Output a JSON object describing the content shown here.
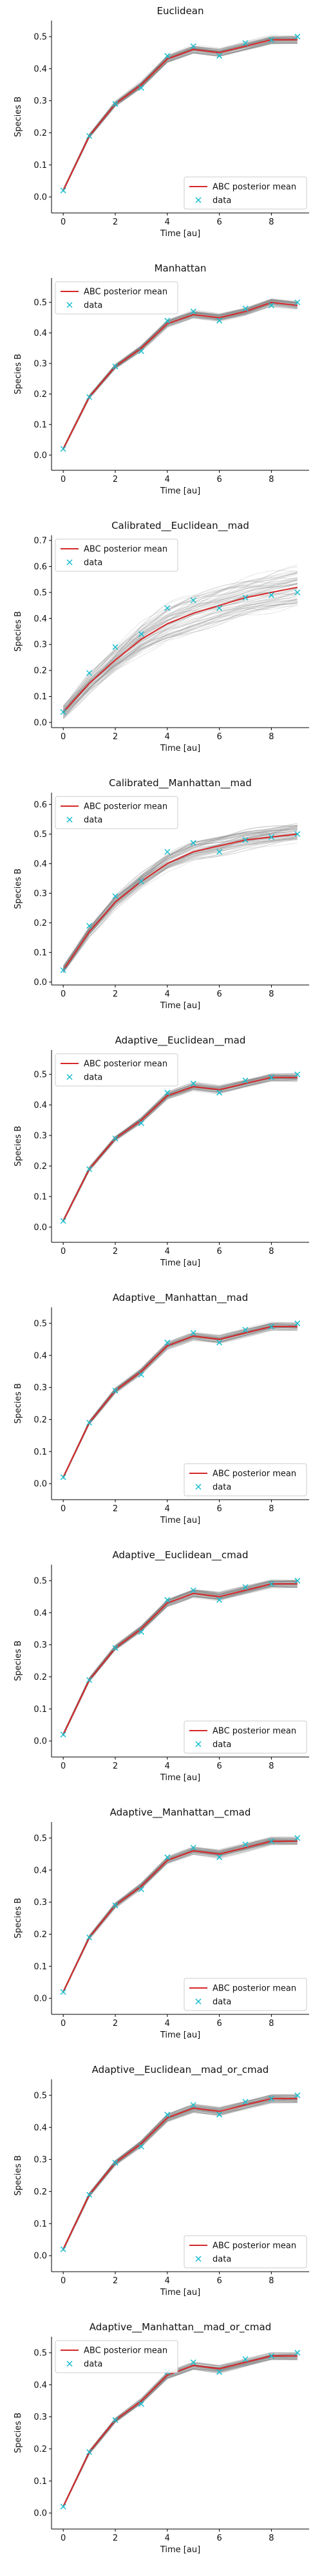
{
  "chart_data": [
    {
      "type": "line",
      "title": "Euclidean",
      "xlabel": "Time [au]",
      "ylabel": "Species B",
      "xlim": [
        -0.45,
        9.45
      ],
      "ylim": [
        -0.05,
        0.55
      ],
      "xticks": [
        0,
        2,
        4,
        6,
        8
      ],
      "yticks": [
        0.0,
        0.1,
        0.2,
        0.3,
        0.4,
        0.5
      ],
      "legend": {
        "placement": "lower-right",
        "entries": [
          "ABC posterior mean",
          "data"
        ]
      },
      "grid": false,
      "band_spread": 0.012,
      "series": [
        {
          "name": "ABC posterior mean",
          "kind": "line",
          "color": "#d62728",
          "x": [
            0,
            1,
            2,
            3,
            4,
            5,
            6,
            7,
            8,
            9
          ],
          "values": [
            0.02,
            0.19,
            0.29,
            0.35,
            0.43,
            0.46,
            0.45,
            0.47,
            0.49,
            0.49
          ]
        },
        {
          "name": "data",
          "kind": "marker",
          "color": "#17becf",
          "x": [
            0,
            1,
            2,
            3,
            4,
            5,
            6,
            7,
            8,
            9
          ],
          "values": [
            0.02,
            0.19,
            0.29,
            0.34,
            0.44,
            0.47,
            0.44,
            0.48,
            0.49,
            0.5
          ]
        }
      ]
    },
    {
      "type": "line",
      "title": "Manhattan",
      "xlabel": "Time [au]",
      "ylabel": "Species B",
      "xlim": [
        -0.45,
        9.45
      ],
      "ylim": [
        -0.05,
        0.58
      ],
      "xticks": [
        0,
        2,
        4,
        6,
        8
      ],
      "yticks": [
        0.0,
        0.1,
        0.2,
        0.3,
        0.4,
        0.5
      ],
      "legend": {
        "placement": "upper-left",
        "entries": [
          "ABC posterior mean",
          "data"
        ]
      },
      "grid": false,
      "band_spread": 0.012,
      "series": [
        {
          "name": "ABC posterior mean",
          "kind": "line",
          "color": "#d62728",
          "x": [
            0,
            1,
            2,
            3,
            4,
            5,
            6,
            7,
            8,
            9
          ],
          "values": [
            0.02,
            0.19,
            0.29,
            0.35,
            0.43,
            0.46,
            0.45,
            0.47,
            0.5,
            0.49
          ]
        },
        {
          "name": "data",
          "kind": "marker",
          "color": "#17becf",
          "x": [
            0,
            1,
            2,
            3,
            4,
            5,
            6,
            7,
            8,
            9
          ],
          "values": [
            0.02,
            0.19,
            0.29,
            0.34,
            0.44,
            0.47,
            0.44,
            0.48,
            0.49,
            0.5
          ]
        }
      ]
    },
    {
      "type": "line",
      "title": "Calibrated__Euclidean__mad",
      "xlabel": "Time [au]",
      "ylabel": "Species B",
      "xlim": [
        -0.45,
        9.45
      ],
      "ylim": [
        -0.02,
        0.72
      ],
      "xticks": [
        0,
        2,
        4,
        6,
        8
      ],
      "yticks": [
        0.0,
        0.1,
        0.2,
        0.3,
        0.4,
        0.5,
        0.6,
        0.7
      ],
      "legend": {
        "placement": "upper-left",
        "entries": [
          "ABC posterior mean",
          "data"
        ]
      },
      "grid": false,
      "band_spread": 0.065,
      "series": [
        {
          "name": "ABC posterior mean",
          "kind": "line",
          "color": "#d62728",
          "x": [
            0,
            1,
            2,
            3,
            4,
            5,
            6,
            7,
            8,
            9
          ],
          "values": [
            0.04,
            0.15,
            0.24,
            0.32,
            0.38,
            0.42,
            0.45,
            0.48,
            0.5,
            0.52
          ]
        },
        {
          "name": "data",
          "kind": "marker",
          "color": "#17becf",
          "x": [
            0,
            1,
            2,
            3,
            4,
            5,
            6,
            7,
            8,
            9
          ],
          "values": [
            0.04,
            0.19,
            0.29,
            0.34,
            0.44,
            0.47,
            0.44,
            0.48,
            0.49,
            0.5
          ]
        }
      ]
    },
    {
      "type": "line",
      "title": "Calibrated__Manhattan__mad",
      "xlabel": "Time [au]",
      "ylabel": "Species B",
      "xlim": [
        -0.45,
        9.45
      ],
      "ylim": [
        -0.01,
        0.64
      ],
      "xticks": [
        0,
        2,
        4,
        6,
        8
      ],
      "yticks": [
        0.0,
        0.1,
        0.2,
        0.3,
        0.4,
        0.5,
        0.6
      ],
      "legend": {
        "placement": "upper-left",
        "entries": [
          "ABC posterior mean",
          "data"
        ]
      },
      "grid": false,
      "band_spread": 0.03,
      "series": [
        {
          "name": "ABC posterior mean",
          "kind": "line",
          "color": "#d62728",
          "x": [
            0,
            1,
            2,
            3,
            4,
            5,
            6,
            7,
            8,
            9
          ],
          "values": [
            0.04,
            0.17,
            0.27,
            0.34,
            0.4,
            0.44,
            0.46,
            0.48,
            0.49,
            0.5
          ]
        },
        {
          "name": "data",
          "kind": "marker",
          "color": "#17becf",
          "x": [
            0,
            1,
            2,
            3,
            4,
            5,
            6,
            7,
            8,
            9
          ],
          "values": [
            0.04,
            0.19,
            0.29,
            0.34,
            0.44,
            0.47,
            0.44,
            0.48,
            0.49,
            0.5
          ]
        }
      ]
    },
    {
      "type": "line",
      "title": "Adaptive__Euclidean__mad",
      "xlabel": "Time [au]",
      "ylabel": "Species B",
      "xlim": [
        -0.45,
        9.45
      ],
      "ylim": [
        -0.05,
        0.58
      ],
      "xticks": [
        0,
        2,
        4,
        6,
        8
      ],
      "yticks": [
        0.0,
        0.1,
        0.2,
        0.3,
        0.4,
        0.5
      ],
      "legend": {
        "placement": "upper-left",
        "entries": [
          "ABC posterior mean",
          "data"
        ]
      },
      "grid": false,
      "band_spread": 0.012,
      "series": [
        {
          "name": "ABC posterior mean",
          "kind": "line",
          "color": "#d62728",
          "x": [
            0,
            1,
            2,
            3,
            4,
            5,
            6,
            7,
            8,
            9
          ],
          "values": [
            0.02,
            0.19,
            0.29,
            0.35,
            0.43,
            0.46,
            0.45,
            0.47,
            0.49,
            0.49
          ]
        },
        {
          "name": "data",
          "kind": "marker",
          "color": "#17becf",
          "x": [
            0,
            1,
            2,
            3,
            4,
            5,
            6,
            7,
            8,
            9
          ],
          "values": [
            0.02,
            0.19,
            0.29,
            0.34,
            0.44,
            0.47,
            0.44,
            0.48,
            0.49,
            0.5
          ]
        }
      ]
    },
    {
      "type": "line",
      "title": "Adaptive__Manhattan__mad",
      "xlabel": "Time [au]",
      "ylabel": "Species B",
      "xlim": [
        -0.45,
        9.45
      ],
      "ylim": [
        -0.05,
        0.55
      ],
      "xticks": [
        0,
        2,
        4,
        6,
        8
      ],
      "yticks": [
        0.0,
        0.1,
        0.2,
        0.3,
        0.4,
        0.5
      ],
      "legend": {
        "placement": "lower-right",
        "entries": [
          "ABC posterior mean",
          "data"
        ]
      },
      "grid": false,
      "band_spread": 0.012,
      "series": [
        {
          "name": "ABC posterior mean",
          "kind": "line",
          "color": "#d62728",
          "x": [
            0,
            1,
            2,
            3,
            4,
            5,
            6,
            7,
            8,
            9
          ],
          "values": [
            0.02,
            0.19,
            0.29,
            0.35,
            0.43,
            0.46,
            0.45,
            0.47,
            0.49,
            0.49
          ]
        },
        {
          "name": "data",
          "kind": "marker",
          "color": "#17becf",
          "x": [
            0,
            1,
            2,
            3,
            4,
            5,
            6,
            7,
            8,
            9
          ],
          "values": [
            0.02,
            0.19,
            0.29,
            0.34,
            0.44,
            0.47,
            0.44,
            0.48,
            0.49,
            0.5
          ]
        }
      ]
    },
    {
      "type": "line",
      "title": "Adaptive__Euclidean__cmad",
      "xlabel": "Time [au]",
      "ylabel": "Species B",
      "xlim": [
        -0.45,
        9.45
      ],
      "ylim": [
        -0.05,
        0.55
      ],
      "xticks": [
        0,
        2,
        4,
        6,
        8
      ],
      "yticks": [
        0.0,
        0.1,
        0.2,
        0.3,
        0.4,
        0.5
      ],
      "legend": {
        "placement": "lower-right",
        "entries": [
          "ABC posterior mean",
          "data"
        ]
      },
      "grid": false,
      "band_spread": 0.012,
      "series": [
        {
          "name": "ABC posterior mean",
          "kind": "line",
          "color": "#d62728",
          "x": [
            0,
            1,
            2,
            3,
            4,
            5,
            6,
            7,
            8,
            9
          ],
          "values": [
            0.02,
            0.19,
            0.29,
            0.35,
            0.43,
            0.46,
            0.45,
            0.47,
            0.49,
            0.49
          ]
        },
        {
          "name": "data",
          "kind": "marker",
          "color": "#17becf",
          "x": [
            0,
            1,
            2,
            3,
            4,
            5,
            6,
            7,
            8,
            9
          ],
          "values": [
            0.02,
            0.19,
            0.29,
            0.34,
            0.44,
            0.47,
            0.44,
            0.48,
            0.49,
            0.5
          ]
        }
      ]
    },
    {
      "type": "line",
      "title": "Adaptive__Manhattan__cmad",
      "xlabel": "Time [au]",
      "ylabel": "Species B",
      "xlim": [
        -0.45,
        9.45
      ],
      "ylim": [
        -0.05,
        0.55
      ],
      "xticks": [
        0,
        2,
        4,
        6,
        8
      ],
      "yticks": [
        0.0,
        0.1,
        0.2,
        0.3,
        0.4,
        0.5
      ],
      "legend": {
        "placement": "lower-right",
        "entries": [
          "ABC posterior mean",
          "data"
        ]
      },
      "grid": false,
      "band_spread": 0.012,
      "series": [
        {
          "name": "ABC posterior mean",
          "kind": "line",
          "color": "#d62728",
          "x": [
            0,
            1,
            2,
            3,
            4,
            5,
            6,
            7,
            8,
            9
          ],
          "values": [
            0.02,
            0.19,
            0.29,
            0.35,
            0.43,
            0.46,
            0.45,
            0.47,
            0.49,
            0.49
          ]
        },
        {
          "name": "data",
          "kind": "marker",
          "color": "#17becf",
          "x": [
            0,
            1,
            2,
            3,
            4,
            5,
            6,
            7,
            8,
            9
          ],
          "values": [
            0.02,
            0.19,
            0.29,
            0.34,
            0.44,
            0.47,
            0.44,
            0.48,
            0.49,
            0.5
          ]
        }
      ]
    },
    {
      "type": "line",
      "title": "Adaptive__Euclidean__mad_or_cmad",
      "xlabel": "Time [au]",
      "ylabel": "Species B",
      "xlim": [
        -0.45,
        9.45
      ],
      "ylim": [
        -0.05,
        0.55
      ],
      "xticks": [
        0,
        2,
        4,
        6,
        8
      ],
      "yticks": [
        0.0,
        0.1,
        0.2,
        0.3,
        0.4,
        0.5
      ],
      "legend": {
        "placement": "lower-right",
        "entries": [
          "ABC posterior mean",
          "data"
        ]
      },
      "grid": false,
      "band_spread": 0.012,
      "series": [
        {
          "name": "ABC posterior mean",
          "kind": "line",
          "color": "#d62728",
          "x": [
            0,
            1,
            2,
            3,
            4,
            5,
            6,
            7,
            8,
            9
          ],
          "values": [
            0.02,
            0.19,
            0.29,
            0.35,
            0.43,
            0.46,
            0.45,
            0.47,
            0.49,
            0.49
          ]
        },
        {
          "name": "data",
          "kind": "marker",
          "color": "#17becf",
          "x": [
            0,
            1,
            2,
            3,
            4,
            5,
            6,
            7,
            8,
            9
          ],
          "values": [
            0.02,
            0.19,
            0.29,
            0.34,
            0.44,
            0.47,
            0.44,
            0.48,
            0.49,
            0.5
          ]
        }
      ]
    },
    {
      "type": "line",
      "title": "Adaptive__Manhattan__mad_or_cmad",
      "xlabel": "Time [au]",
      "ylabel": "Species B",
      "xlim": [
        -0.45,
        9.45
      ],
      "ylim": [
        -0.05,
        0.55
      ],
      "xticks": [
        0,
        2,
        4,
        6,
        8
      ],
      "yticks": [
        0.0,
        0.1,
        0.2,
        0.3,
        0.4,
        0.5
      ],
      "legend": {
        "placement": "upper-left",
        "entries": [
          "ABC posterior mean",
          "data"
        ]
      },
      "grid": false,
      "band_spread": 0.012,
      "series": [
        {
          "name": "ABC posterior mean",
          "kind": "line",
          "color": "#d62728",
          "x": [
            0,
            1,
            2,
            3,
            4,
            5,
            6,
            7,
            8,
            9
          ],
          "values": [
            0.02,
            0.19,
            0.29,
            0.35,
            0.43,
            0.46,
            0.45,
            0.47,
            0.49,
            0.49
          ]
        },
        {
          "name": "data",
          "kind": "marker",
          "color": "#17becf",
          "x": [
            0,
            1,
            2,
            3,
            4,
            5,
            6,
            7,
            8,
            9
          ],
          "values": [
            0.02,
            0.19,
            0.29,
            0.34,
            0.44,
            0.47,
            0.44,
            0.48,
            0.49,
            0.5
          ]
        }
      ]
    }
  ]
}
